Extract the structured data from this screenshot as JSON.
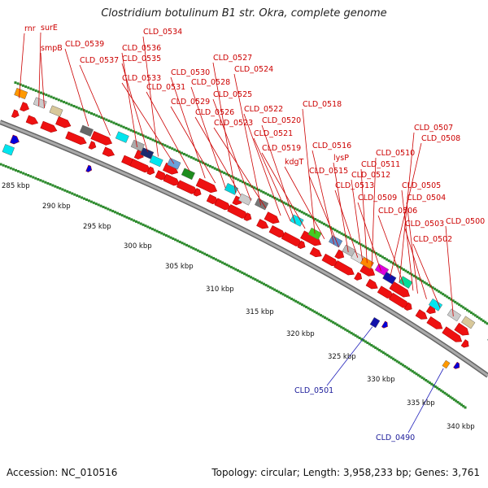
{
  "title": "Clostridium botulinum B1 str. Okra, complete genome",
  "accession": "Accession: NC_010516",
  "summary": "Topology: circular; Length: 3,958,233 bp; Genes: 3,761",
  "scale_labels": [
    "285 kbp",
    "290 kbp",
    "295 kbp",
    "300 kbp",
    "305 kbp",
    "310 kbp",
    "315 kbp",
    "320 kbp",
    "325 kbp",
    "330 kbp",
    "335 kbp",
    "340 kbp"
  ],
  "gene_labels": [
    "rnr",
    "surE",
    "smpB",
    "CLD_0539",
    "CLD_0537",
    "CLD_0536",
    "CLD_0535",
    "CLD_0534",
    "CLD_0533",
    "CLD_0531",
    "CLD_0530",
    "CLD_0529",
    "CLD_0528",
    "CLD_0527",
    "CLD_0526",
    "CLD_0525",
    "CLD_0524",
    "CLD_0523",
    "CLD_0522",
    "CLD_0521",
    "CLD_0520",
    "CLD_0519",
    "CLD_0518",
    "kdgT",
    "CLD_0516",
    "CLD_0515",
    "lysP",
    "CLD_0513",
    "CLD_0512",
    "CLD_0511",
    "CLD_0510",
    "CLD_0509",
    "CLD_0508",
    "CLD_0507",
    "CLD_0506",
    "CLD_0505",
    "CLD_0504",
    "CLD_0503",
    "CLD_0502",
    "CLD_0500"
  ],
  "lower_labels": [
    "CLD_0501",
    "CLD_0490"
  ],
  "colors": {
    "cds": "#ee1111",
    "backbone": "#999999",
    "gc_dots": "#2e8b2e",
    "rna": "#00e5ee",
    "label": "#cc0000",
    "label_lower": "#1a1a99"
  }
}
